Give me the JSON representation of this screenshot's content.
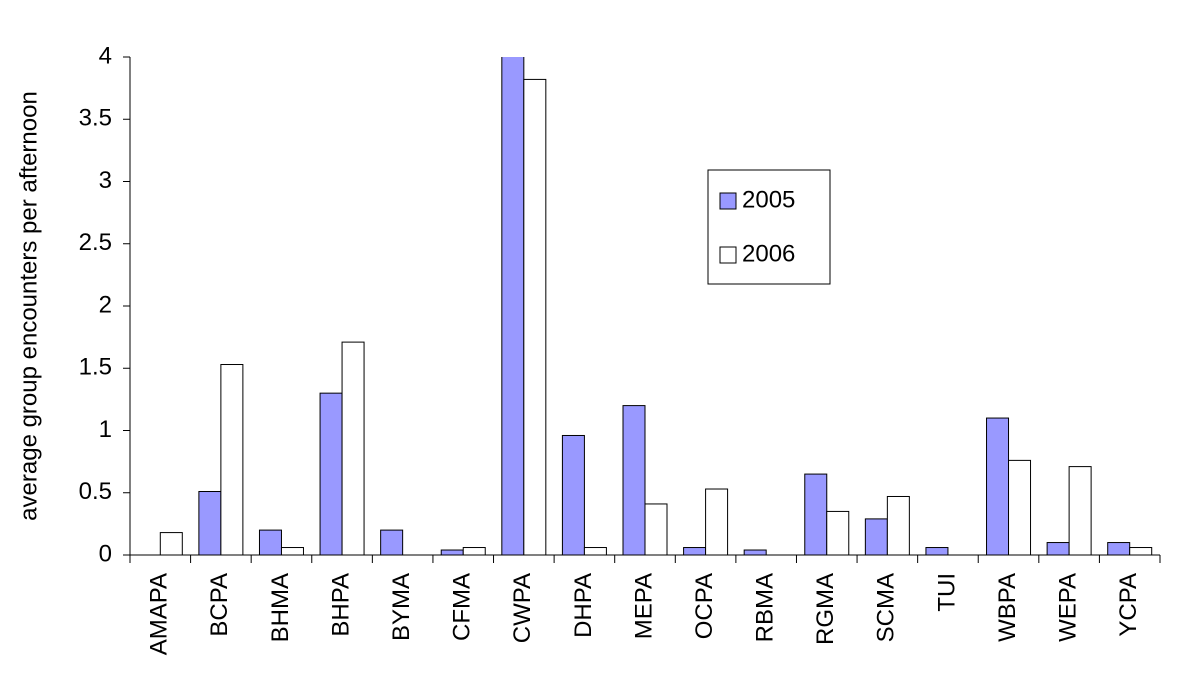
{
  "chart_data": {
    "type": "bar",
    "y_label": "average group encounters per afternoon",
    "categories": [
      "AMAPA",
      "BCPA",
      "BHMA",
      "BHPA",
      "BYMA",
      "CFMA",
      "CWPA",
      "DHPA",
      "MEPA",
      "OCPA",
      "RBMA",
      "RGMA",
      "SCMA",
      "TUI",
      "WBPA",
      "WEPA",
      "YCPA"
    ],
    "series": [
      {
        "name": "2005",
        "color": "#9999ff",
        "values": [
          0,
          0.51,
          0.2,
          1.3,
          0.2,
          0.04,
          4.1,
          0.96,
          1.2,
          0.06,
          0.04,
          0.65,
          0.29,
          0.06,
          1.1,
          0.1,
          0.1
        ]
      },
      {
        "name": "2006",
        "color": "#ffffff",
        "values": [
          0.18,
          1.53,
          0.06,
          1.71,
          0,
          0.06,
          3.82,
          0.06,
          0.41,
          0.53,
          0,
          0.35,
          0.47,
          0,
          0.76,
          0.71,
          0.06
        ]
      }
    ],
    "ylim": [
      0,
      4
    ],
    "yticks": [
      0,
      0.5,
      1,
      1.5,
      2,
      2.5,
      3,
      3.5,
      4
    ],
    "legend": "right"
  }
}
